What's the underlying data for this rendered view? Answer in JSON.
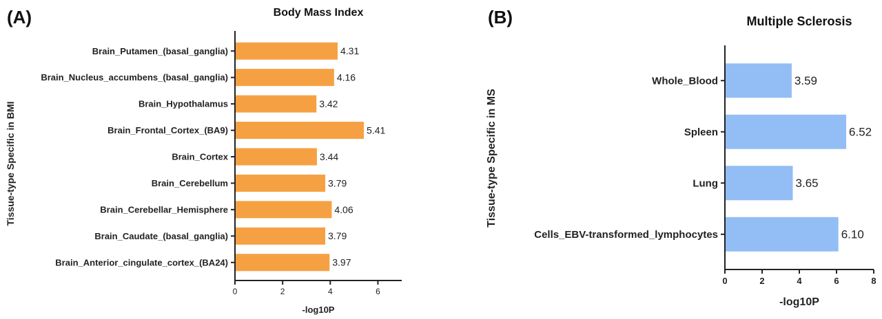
{
  "chart_data": [
    {
      "panel_label": "(A)",
      "type": "bar",
      "orientation": "horizontal",
      "title": "Body Mass Index",
      "xlabel": "-log10P",
      "ylabel": "Tissue-type Specific in BMI",
      "xlim": [
        0,
        7
      ],
      "xticks": [
        "0",
        "2",
        "4",
        "6"
      ],
      "bar_color": "#F5A143",
      "categories": [
        "Brain_Putamen_(basal_ganglia)",
        "Brain_Nucleus_accumbens_(basal_ganglia)",
        "Brain_Hypothalamus",
        "Brain_Frontal_Cortex_(BA9)",
        "Brain_Cortex",
        "Brain_Cerebellum",
        "Brain_Cerebellar_Hemisphere",
        "Brain_Caudate_(basal_ganglia)",
        "Brain_Anterior_cingulate_cortex_(BA24)"
      ],
      "values": [
        4.31,
        4.16,
        3.42,
        5.41,
        3.44,
        3.79,
        4.06,
        3.79,
        3.97
      ],
      "value_labels": [
        "4.31",
        "4.16",
        "3.42",
        "5.41",
        "3.44",
        "3.79",
        "4.06",
        "3.79",
        "3.97"
      ]
    },
    {
      "panel_label": "(B)",
      "type": "bar",
      "orientation": "horizontal",
      "title": "Multiple Sclerosis",
      "xlabel": "-log10P",
      "ylabel": "Tissue-type Specific in MS",
      "xlim": [
        0,
        8
      ],
      "xticks": [
        "0",
        "2",
        "4",
        "6",
        "8"
      ],
      "bar_color": "#92BEF5",
      "categories": [
        "Whole_Blood",
        "Spleen",
        "Lung",
        "Cells_EBV-transformed_lymphocytes"
      ],
      "values": [
        3.59,
        6.52,
        3.65,
        6.1
      ],
      "value_labels": [
        "3.59",
        "6.52",
        "3.65",
        "6.10"
      ]
    }
  ]
}
